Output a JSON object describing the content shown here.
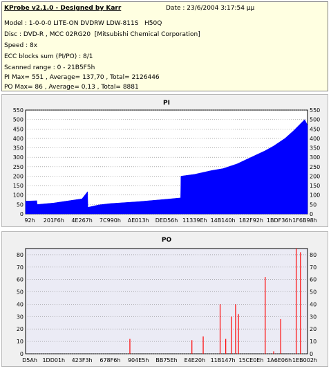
{
  "header": {
    "title": "KProbe v2.1.0 - Designed by Karr",
    "date": "Date : 23/6/2004 3:17:54 μμ",
    "model": "Model : 1-0-0-0 LITE-ON DVDRW LDW-811S   H50Q",
    "disc": "Disc : DVD-R , MCC 02RG20  [Mitsubishi Chemical Corporation]",
    "speed": "Speed : 8x",
    "ecc": "ECC blocks sum (PI/PO) : 8/1",
    "range": "Scanned range : 0 - 21B5F5h",
    "pi_stats": "PI Max= 551 , Average= 137,70 , Total= 2126446",
    "po_stats": "PO Max= 86 , Average= 0,13 , Total= 8881"
  },
  "chart_data": [
    {
      "type": "area",
      "title": "PI",
      "color": "#0000ff",
      "ylim": [
        0,
        550
      ],
      "yticks": [
        0,
        50,
        100,
        150,
        200,
        250,
        300,
        350,
        400,
        450,
        500,
        550
      ],
      "xtick_labels": [
        "92h",
        "201F6h",
        "4E267h",
        "7C990h",
        "AE013h",
        "DED56h",
        "11339Eh",
        "14B140h",
        "182F92h",
        "1BDF36h",
        "1F6B98h"
      ],
      "max": 551,
      "average": 137.7,
      "total": 2126446,
      "x_fraction": [
        0,
        0.04,
        0.041,
        0.1,
        0.2,
        0.22,
        0.221,
        0.26,
        0.3,
        0.4,
        0.5,
        0.55,
        0.551,
        0.6,
        0.66,
        0.7,
        0.75,
        0.8,
        0.85,
        0.88,
        0.92,
        0.95,
        0.97,
        0.99,
        1.0
      ],
      "values": [
        68,
        70,
        50,
        58,
        80,
        118,
        35,
        48,
        55,
        65,
        78,
        85,
        200,
        210,
        230,
        240,
        265,
        300,
        335,
        360,
        400,
        440,
        470,
        500,
        470
      ]
    },
    {
      "type": "bar",
      "title": "PO",
      "color": "#ff0000",
      "ylim": [
        0,
        85
      ],
      "yticks": [
        0,
        10,
        20,
        30,
        40,
        50,
        60,
        70,
        80
      ],
      "xtick_labels": [
        "D5Ah",
        "1DD01h",
        "423F3h",
        "678F6h",
        "904E5h",
        "BB75Eh",
        "E4E20h",
        "11B147h",
        "15CE0Eh",
        "1A6E06h",
        "1EB002h"
      ],
      "max": 86,
      "average": 0.13,
      "total": 8881,
      "x_fraction": [
        0.37,
        0.59,
        0.63,
        0.69,
        0.73,
        0.71,
        0.745,
        0.755,
        0.85,
        0.88,
        0.905,
        0.96,
        0.975
      ],
      "values": [
        12,
        11,
        14,
        40,
        30,
        12,
        40,
        32,
        62,
        2,
        28,
        85,
        82
      ]
    }
  ]
}
